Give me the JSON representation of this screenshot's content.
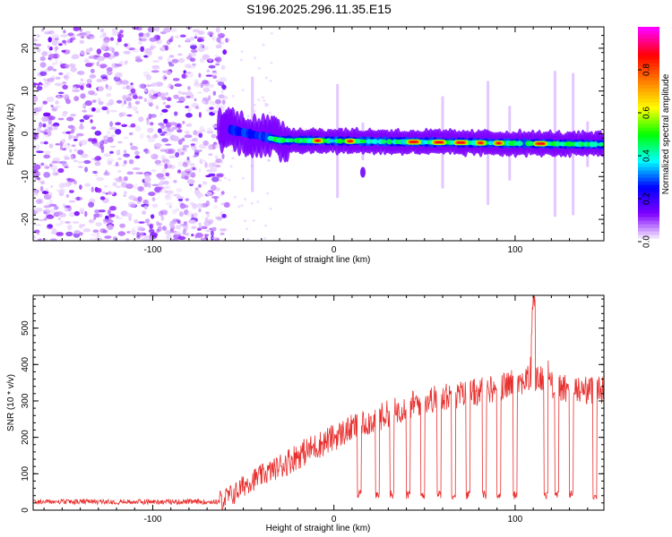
{
  "figure": {
    "title": "S196.2025.296.11.35.E15"
  },
  "chart_data": [
    {
      "type": "heatmap",
      "name": "spectrogram",
      "xlabel": "Height of straight line (km)",
      "ylabel": "Frequency (Hz)",
      "xlim": [
        -166,
        149
      ],
      "ylim": [
        -25,
        25
      ],
      "xticks": [
        -100,
        0,
        100
      ],
      "yticks": [
        -20,
        -10,
        0,
        10,
        20
      ],
      "colorbar": {
        "label": "Normalized spectral amplitude",
        "range": [
          0,
          1
        ],
        "ticks": [
          0.0,
          0.2,
          0.4,
          0.6,
          0.8
        ],
        "colormap": [
          "#ffffff",
          "#8000ff",
          "#0000ff",
          "#00ffff",
          "#00ff00",
          "#ffff00",
          "#ff8000",
          "#ff0000",
          "#ff00ff"
        ]
      },
      "noise_region_km": [
        -166,
        -63
      ],
      "signal_track": {
        "start_km": -63,
        "freq_start_hz": 1.5,
        "freq_mid_hz": -1.5,
        "freq_end_hz": -2.5,
        "peak_amplitude_segments_km": [
          [
            -12,
            -6
          ],
          [
            6,
            12
          ],
          [
            40,
            48
          ],
          [
            54,
            62
          ],
          [
            66,
            74
          ],
          [
            78,
            84
          ],
          [
            88,
            94
          ],
          [
            110,
            118
          ]
        ]
      }
    },
    {
      "type": "line",
      "name": "snr",
      "xlabel": "Height of straight line (km)",
      "ylabel": "SNR (10 * v/v)",
      "xlim": [
        -166,
        149
      ],
      "ylim": [
        0,
        590
      ],
      "xticks": [
        -100,
        0,
        100
      ],
      "yticks": [
        0,
        100,
        200,
        300,
        400,
        500
      ],
      "line_color": "#e8302e",
      "series": [
        {
          "name": "SNR",
          "x": [
            -166,
            -140,
            -120,
            -100,
            -80,
            -63,
            -55,
            -48,
            -40,
            -30,
            -20,
            -10,
            0,
            10,
            20,
            30,
            40,
            50,
            60,
            70,
            80,
            90,
            100,
            108,
            110,
            120,
            130,
            140,
            149
          ],
          "y": [
            20,
            20,
            22,
            20,
            22,
            25,
            45,
            75,
            95,
            120,
            150,
            175,
            200,
            225,
            245,
            265,
            285,
            300,
            310,
            318,
            325,
            335,
            350,
            360,
            590,
            345,
            330,
            330,
            330
          ]
        }
      ],
      "dropouts_km": [
        14,
        24,
        32,
        41,
        49,
        58,
        66,
        74,
        83,
        91,
        100,
        117,
        123,
        131,
        144
      ],
      "dropout_level": 30
    }
  ]
}
